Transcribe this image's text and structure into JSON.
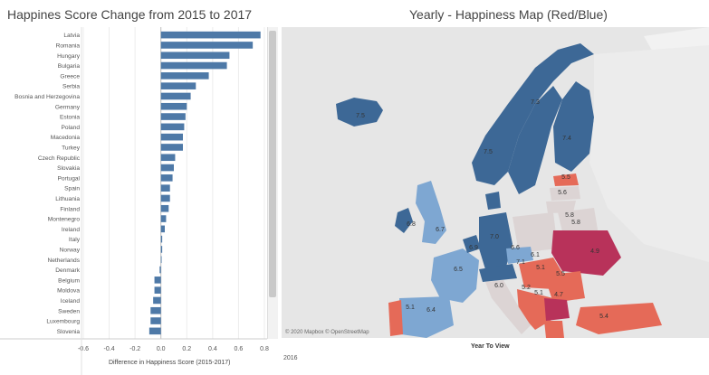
{
  "left_panel": {
    "title": "Happines Score Change from 2015 to 2017"
  },
  "right_panel": {
    "title": "Yearly - Happiness Map (Red/Blue)"
  },
  "chart_data": {
    "type": "bar",
    "orientation": "horizontal",
    "title": "Happines Score Change from 2015 to 2017",
    "xlabel": "Difference in Happiness Score (2015-2017)",
    "xlim": [
      -0.6,
      0.8
    ],
    "xticks": [
      "-0.6",
      "-0.4",
      "-0.2",
      "0.0",
      "0.2",
      "0.4",
      "0.6",
      "0.8"
    ],
    "categories": [
      "Latvia",
      "Romania",
      "Hungary",
      "Bulgaria",
      "Greece",
      "Serbia",
      "Bosnia and Herzegovina",
      "Germany",
      "Estonia",
      "Poland",
      "Macedonia",
      "Turkey",
      "Czech Republic",
      "Slovakia",
      "Portugal",
      "Spain",
      "Lithuania",
      "Finland",
      "Montenegro",
      "Ireland",
      "Italy",
      "Norway",
      "Netherlands",
      "Denmark",
      "Belgium",
      "Moldova",
      "Iceland",
      "Sweden",
      "Luxembourg",
      "Slovenia"
    ],
    "values": [
      0.77,
      0.71,
      0.53,
      0.51,
      0.37,
      0.27,
      0.23,
      0.2,
      0.19,
      0.18,
      0.17,
      0.17,
      0.11,
      0.1,
      0.09,
      0.07,
      0.07,
      0.06,
      0.04,
      0.03,
      0.01,
      0.01,
      0.0,
      -0.01,
      -0.05,
      -0.05,
      -0.06,
      -0.08,
      -0.08,
      -0.09
    ],
    "bar_color": "#4e79a7",
    "grid": true
  },
  "map": {
    "attribution": "© 2020 Mapbox © OpenStreetMap",
    "labels": [
      "7.5",
      "7.3",
      "7.4",
      "7.5",
      "5.5",
      "5.6",
      "5.8",
      "5.8",
      "6.8",
      "6.7",
      "6.9",
      "7.0",
      "6.6",
      "6.1",
      "7.1",
      "4.9",
      "5.1",
      "5.5",
      "6.5",
      "6.0",
      "5.2",
      "5.1",
      "4.7",
      "6.4",
      "5.1",
      "5.4"
    ]
  },
  "filter": {
    "title": "Year To View",
    "value": "2016"
  },
  "colors": {
    "blue_dark": "#3d6896",
    "blue_light": "#7ea7d2",
    "red_dark": "#b8325a",
    "red_mid": "#e56a58",
    "neutral": "#dcd4d4",
    "land": "#e8e8e8"
  }
}
